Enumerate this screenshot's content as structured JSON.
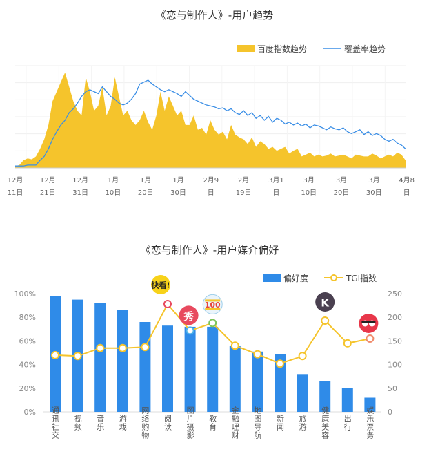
{
  "chart_data": [
    {
      "type": "area",
      "title": "《恋与制作人》-用户趋势",
      "legend": [
        {
          "name": "百度指数趋势",
          "color": "#F5C42C",
          "kind": "area"
        },
        {
          "name": "覆盖率趋势",
          "color": "#3A8EE6",
          "kind": "line"
        }
      ],
      "legend_position": "top-right",
      "x_tick_labels": [
        [
          "12月",
          "11日"
        ],
        [
          "12月",
          "21日"
        ],
        [
          "12月",
          "31日"
        ],
        [
          "1月",
          "10日"
        ],
        [
          "1月",
          "20日"
        ],
        [
          "1月",
          "30日"
        ],
        [
          "2月9",
          "日"
        ],
        [
          "2月",
          "19日"
        ],
        [
          "3月1",
          "日"
        ],
        [
          "3月",
          "10日"
        ],
        [
          "3月",
          "20日"
        ],
        [
          "3月",
          "30日"
        ],
        [
          "4月8",
          "日"
        ]
      ],
      "y_axis": "none",
      "grid": true,
      "series": [
        {
          "name": "百度指数趋势",
          "kind": "area",
          "values": [
            2,
            3,
            8,
            10,
            9,
            12,
            20,
            30,
            45,
            70,
            80,
            90,
            100,
            85,
            70,
            60,
            55,
            95,
            80,
            60,
            65,
            85,
            55,
            65,
            95,
            75,
            55,
            60,
            50,
            45,
            50,
            60,
            48,
            40,
            55,
            80,
            60,
            75,
            65,
            55,
            60,
            45,
            45,
            55,
            40,
            42,
            35,
            50,
            40,
            35,
            38,
            30,
            45,
            35,
            32,
            30,
            25,
            32,
            22,
            28,
            25,
            20,
            22,
            18,
            20,
            22,
            15,
            18,
            20,
            12,
            14,
            16,
            12,
            14,
            12,
            13,
            15,
            12,
            13,
            14,
            12,
            10,
            14,
            13,
            12,
            12,
            15,
            13,
            10,
            12,
            14,
            12,
            16,
            14,
            8
          ]
        },
        {
          "name": "覆盖率趋势",
          "kind": "line",
          "values": [
            2,
            2,
            2,
            3,
            3,
            3,
            8,
            12,
            20,
            30,
            38,
            45,
            50,
            58,
            62,
            68,
            75,
            80,
            82,
            80,
            78,
            85,
            80,
            75,
            72,
            68,
            66,
            68,
            72,
            78,
            88,
            90,
            92,
            88,
            85,
            82,
            80,
            82,
            80,
            78,
            75,
            80,
            76,
            72,
            70,
            68,
            66,
            65,
            64,
            62,
            63,
            60,
            62,
            58,
            56,
            60,
            55,
            58,
            52,
            55,
            50,
            54,
            48,
            52,
            50,
            46,
            48,
            45,
            47,
            44,
            46,
            42,
            45,
            44,
            42,
            40,
            43,
            41,
            40,
            42,
            38,
            36,
            38,
            40,
            35,
            38,
            34,
            36,
            34,
            30,
            28,
            30,
            26,
            24,
            20
          ]
        }
      ]
    },
    {
      "type": "bar",
      "title": "《恋与制作人》-用户媒介偏好",
      "legend": [
        {
          "name": "偏好度",
          "color": "#2F8BE8",
          "kind": "bar"
        },
        {
          "name": "TGI指数",
          "color": "#F5C42C",
          "kind": "line"
        }
      ],
      "legend_position": "top-right",
      "categories": [
        "通讯社交",
        "视频",
        "音乐",
        "游戏",
        "网络购物",
        "阅读",
        "图片摄影",
        "教育",
        "金融理财",
        "地图导航",
        "新闻",
        "旅游",
        "健康美容",
        "出行",
        "娱乐票务"
      ],
      "y_left": {
        "ticks": [
          "0%",
          "20%",
          "40%",
          "60%",
          "80%",
          "100%"
        ],
        "range": [
          0,
          100
        ]
      },
      "y_right": {
        "ticks": [
          "0",
          "50",
          "100",
          "150",
          "200",
          "250"
        ],
        "range": [
          0,
          250
        ]
      },
      "series": [
        {
          "name": "偏好度",
          "axis": "left",
          "values": [
            98,
            95,
            92,
            86,
            76,
            73,
            72,
            72,
            56,
            51,
            49,
            32,
            26,
            20,
            12
          ]
        },
        {
          "name": "TGI指数",
          "axis": "right",
          "values": [
            120,
            118,
            135,
            135,
            137,
            228,
            172,
            188,
            140,
            122,
            102,
            118,
            193,
            145,
            155
          ]
        }
      ],
      "app_icons": [
        {
          "category": "阅读",
          "icon": "kuaikan-manhua-icon",
          "label": "快看!",
          "color": "#F7D21A"
        },
        {
          "category": "图片摄影",
          "icon": "xiu-icon",
          "label": "秀",
          "color": "#E84A5F"
        },
        {
          "category": "教育",
          "icon": "100-icon",
          "label": "100",
          "color": "#E8463B"
        },
        {
          "category": "健康美容",
          "icon": "keep-icon",
          "label": "K",
          "color": "#4A4050"
        },
        {
          "category": "娱乐票务",
          "icon": "3d-glasses-icon",
          "label": "",
          "color": "#E8374A"
        }
      ]
    }
  ]
}
